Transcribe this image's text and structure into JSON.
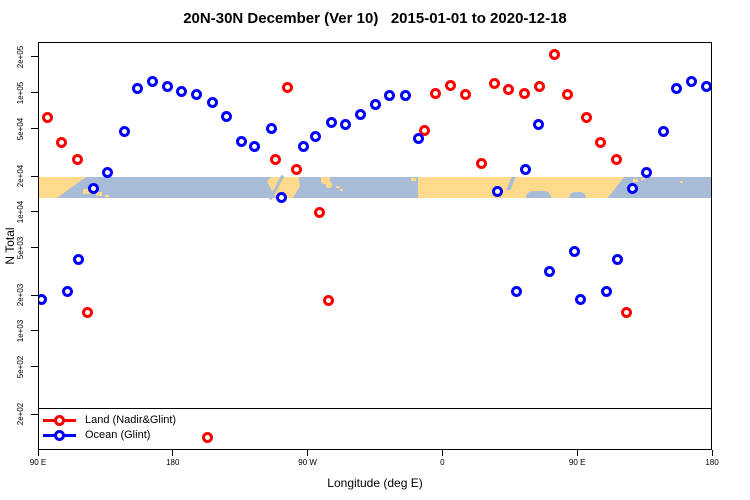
{
  "chart_data": {
    "type": "scatter",
    "title": "20N-30N December (Ver 10)   2015-01-01 to 2020-12-18",
    "xlabel": "Longitude (deg E)",
    "ylabel": "N Total",
    "x_range": [
      90,
      540
    ],
    "x_ticks": [
      {
        "deg": 90,
        "label": "90 E"
      },
      {
        "deg": 180,
        "label": "180"
      },
      {
        "deg": 270,
        "label": "90 W"
      },
      {
        "deg": 360,
        "label": "0"
      },
      {
        "deg": 450,
        "label": "90 E"
      },
      {
        "deg": 540,
        "label": "180"
      }
    ],
    "y_scale": "log",
    "y_range": [
      100,
      267000
    ],
    "y_ticks": [
      {
        "value": 200000,
        "label": "2e+05"
      },
      {
        "value": 100000,
        "label": "1e+05"
      },
      {
        "value": 50000,
        "label": "5e+04"
      },
      {
        "value": 20000,
        "label": "2e+04"
      },
      {
        "value": 10000,
        "label": "1e+04"
      },
      {
        "value": 5000,
        "label": "5e+03"
      },
      {
        "value": 2000,
        "label": "2e+03"
      },
      {
        "value": 1000,
        "label": "1e+03"
      },
      {
        "value": 500,
        "label": "5e+02"
      },
      {
        "value": 200,
        "label": "2e+02"
      }
    ],
    "legend_position": "bottom-left",
    "grid": false,
    "series": [
      {
        "name": "Land (Nadir&Glint)",
        "color": "#ff0000",
        "marker": "open-circle",
        "points": [
          [
            95.8,
            63000
          ],
          [
            104.7,
            39000
          ],
          [
            115.8,
            28000
          ],
          [
            122.1,
            1470
          ],
          [
            202.7,
            130
          ],
          [
            248.1,
            28000
          ],
          [
            255.6,
            113000
          ],
          [
            261.6,
            23000
          ],
          [
            277.2,
            10000
          ],
          [
            283.2,
            1850
          ],
          [
            347.3,
            49000
          ],
          [
            354.7,
            100000
          ],
          [
            364.5,
            117000
          ],
          [
            374.7,
            98000
          ],
          [
            385.2,
            26000
          ],
          [
            394.1,
            123000
          ],
          [
            403.7,
            108000
          ],
          [
            414.1,
            100000
          ],
          [
            424.1,
            116000
          ],
          [
            434.2,
            213000
          ],
          [
            442.6,
            98000
          ],
          [
            455.8,
            63000
          ],
          [
            464.7,
            39000
          ],
          [
            475.8,
            28000
          ],
          [
            482.1,
            1470
          ]
        ]
      },
      {
        "name": "Ocean (Glint)",
        "color": "#0000ff",
        "marker": "open-circle",
        "points": [
          [
            91.7,
            1870
          ],
          [
            108.7,
            2200
          ],
          [
            116.2,
            4100
          ],
          [
            126.5,
            16000
          ],
          [
            135.9,
            22000
          ],
          [
            147.0,
            48000
          ],
          [
            155.9,
            110000
          ],
          [
            165.9,
            127000
          ],
          [
            175.5,
            115000
          ],
          [
            184.8,
            105000
          ],
          [
            194.9,
            98000
          ],
          [
            205.5,
            85000
          ],
          [
            215.3,
            65000
          ],
          [
            225.4,
            40000
          ],
          [
            233.8,
            36000
          ],
          [
            244.9,
            51000
          ],
          [
            252.1,
            13600
          ],
          [
            266.8,
            36000
          ],
          [
            274.5,
            44000
          ],
          [
            285.0,
            57000
          ],
          [
            294.6,
            55000
          ],
          [
            304.4,
            67000
          ],
          [
            314.4,
            81000
          ],
          [
            323.7,
            96000
          ],
          [
            334.4,
            96000
          ],
          [
            343.6,
            42000
          ],
          [
            396.3,
            15000
          ],
          [
            408.5,
            2200
          ],
          [
            414.8,
            23000
          ],
          [
            423.7,
            55000
          ],
          [
            430.8,
            3200
          ],
          [
            447.5,
            4700
          ],
          [
            451.7,
            1870
          ],
          [
            468.7,
            2200
          ],
          [
            476.2,
            4100
          ],
          [
            486.5,
            16000
          ],
          [
            495.9,
            22000
          ],
          [
            507.0,
            48000
          ],
          [
            515.9,
            110000
          ],
          [
            525.9,
            127000
          ],
          [
            535.5,
            115000
          ]
        ]
      }
    ],
    "map_band": {
      "description": "20N-30N world map strip",
      "value_top": 20000,
      "value_bottom": 13300,
      "ocean_color": "#a8bcd8",
      "land_color": "#ffd98c"
    }
  }
}
